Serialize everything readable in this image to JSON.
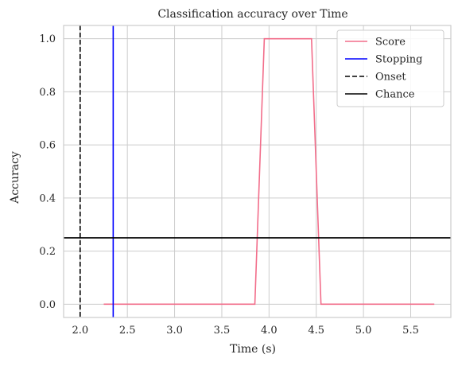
{
  "chart_data": {
    "type": "line",
    "title": "Classification accuracy over Time",
    "xlabel": "Time (s)",
    "ylabel": "Accuracy",
    "xlim": [
      1.825,
      5.925
    ],
    "ylim": [
      -0.05,
      1.05
    ],
    "xticks": [
      2.0,
      2.5,
      3.0,
      3.5,
      4.0,
      4.5,
      5.0,
      5.5
    ],
    "xtick_labels": [
      "2.0",
      "2.5",
      "3.0",
      "3.5",
      "4.0",
      "4.5",
      "5.0",
      "5.5"
    ],
    "yticks": [
      0.0,
      0.2,
      0.4,
      0.6,
      0.8,
      1.0
    ],
    "ytick_labels": [
      "0.0",
      "0.2",
      "0.4",
      "0.6",
      "0.8",
      "1.0"
    ],
    "grid": true,
    "legend_position": "top-right",
    "series": [
      {
        "name": "Score",
        "color": "#f26d8a",
        "style": "solid",
        "x": [
          2.25,
          3.85,
          3.95,
          4.45,
          4.55,
          5.75
        ],
        "y": [
          0.0,
          0.0,
          1.0,
          1.0,
          0.0,
          0.0
        ]
      }
    ],
    "vlines": [
      {
        "name": "Stopping",
        "x": 2.35,
        "color": "#0000ff",
        "style": "solid"
      },
      {
        "name": "Onset",
        "x": 2.0,
        "color": "#000000",
        "style": "dashed"
      }
    ],
    "hlines": [
      {
        "name": "Chance",
        "y": 0.25,
        "color": "#000000",
        "style": "solid"
      }
    ],
    "legend": [
      {
        "label": "Score",
        "color": "#f26d8a",
        "style": "solid"
      },
      {
        "label": "Stopping",
        "color": "#0000ff",
        "style": "solid"
      },
      {
        "label": "Onset",
        "color": "#000000",
        "style": "dashed"
      },
      {
        "label": "Chance",
        "color": "#000000",
        "style": "solid"
      }
    ]
  }
}
